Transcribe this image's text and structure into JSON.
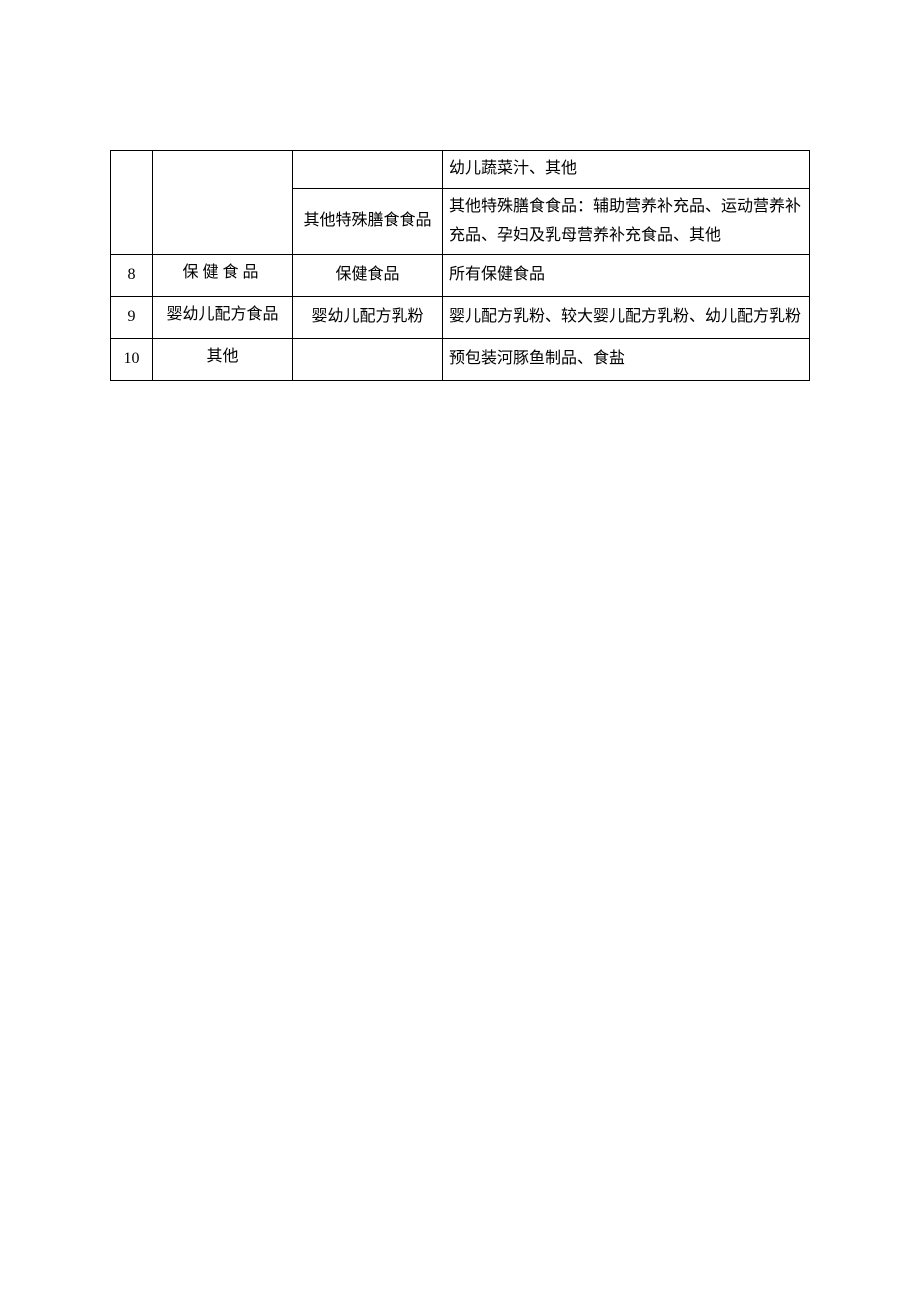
{
  "table": {
    "border_color": "#000000",
    "background_color": "#ffffff",
    "font_size": 16,
    "text_color": "#000000",
    "rows": [
      {
        "num": "",
        "category": "",
        "subcategory": "",
        "description": "幼儿蔬菜汁、其他"
      },
      {
        "num": "",
        "category": "",
        "subcategory": "其他特殊膳食食品",
        "description": "其他特殊膳食食品：辅助营养补充品、运动营养补充品、孕妇及乳母营养补充食品、其他"
      },
      {
        "num": "8",
        "category": "保健食品",
        "subcategory": "保健食品",
        "description": "所有保健食品"
      },
      {
        "num": "9",
        "category": "婴幼儿配方食品",
        "subcategory": "婴幼儿配方乳粉",
        "description": "婴儿配方乳粉、较大婴儿配方乳粉、幼儿配方乳粉"
      },
      {
        "num": "10",
        "category": "其他",
        "subcategory": "",
        "description": "预包装河豚鱼制品、食盐"
      }
    ]
  }
}
